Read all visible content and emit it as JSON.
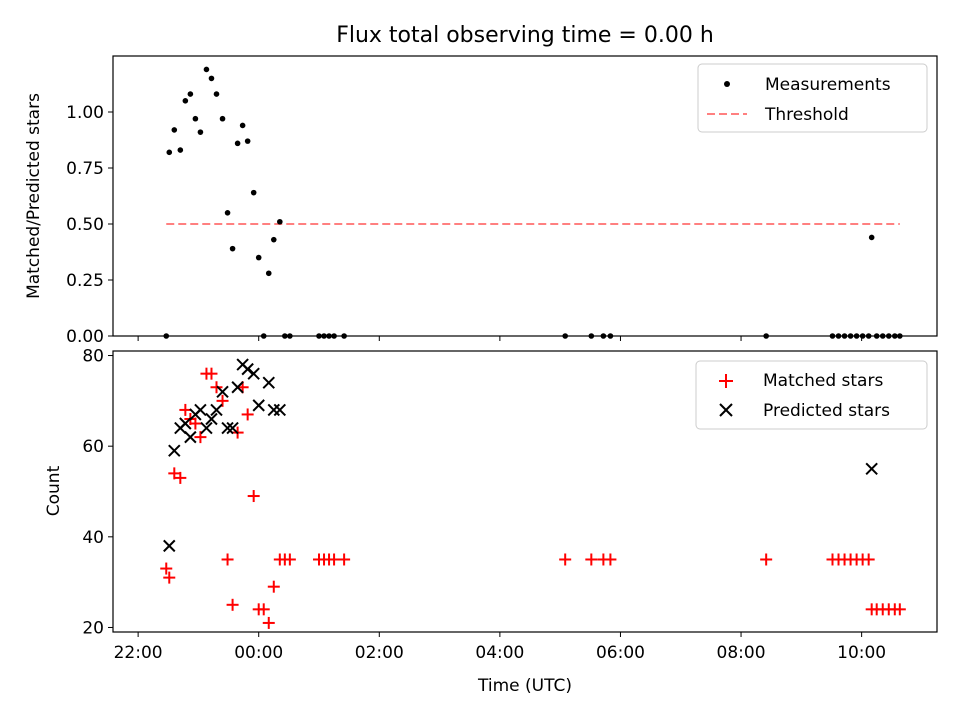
{
  "figure_title": "Flux total observing time = 0.00 h",
  "colors": {
    "matched": "#ff0000",
    "predicted": "#000000",
    "threshold": "#ff8080",
    "measurement": "#000000"
  },
  "chart_data": [
    {
      "type": "scatter",
      "ylabel": "Matched/Predicted stars",
      "xlabel": "",
      "x_unit": "hours since 22:00 UTC shown as clock time",
      "xlim": [
        "21:35",
        "11:15"
      ],
      "ylim": [
        0,
        1.25
      ],
      "yticks": [
        "0.00",
        "0.25",
        "0.50",
        "0.75",
        "1.00"
      ],
      "legend_position": "top-right",
      "threshold": {
        "name": "Threshold",
        "value": 0.5,
        "x_start": "22:28",
        "x_end": "10:38",
        "style": "dashed"
      },
      "series": [
        {
          "name": "Measurements",
          "points": [
            [
              "22:28",
              0.0
            ],
            [
              "22:31",
              0.82
            ],
            [
              "22:36",
              0.92
            ],
            [
              "22:42",
              0.83
            ],
            [
              "22:47",
              1.05
            ],
            [
              "22:52",
              1.08
            ],
            [
              "22:57",
              0.97
            ],
            [
              "23:02",
              0.91
            ],
            [
              "23:08",
              1.19
            ],
            [
              "23:13",
              1.15
            ],
            [
              "23:18",
              1.08
            ],
            [
              "23:24",
              0.97
            ],
            [
              "23:29",
              0.55
            ],
            [
              "23:34",
              0.39
            ],
            [
              "23:39",
              0.86
            ],
            [
              "23:44",
              0.94
            ],
            [
              "23:49",
              0.87
            ],
            [
              "23:55",
              0.64
            ],
            [
              "00:00",
              0.35
            ],
            [
              "00:05",
              0.0
            ],
            [
              "00:10",
              0.28
            ],
            [
              "00:15",
              0.43
            ],
            [
              "00:21",
              0.51
            ],
            [
              "00:26",
              0.0
            ],
            [
              "00:31",
              0.0
            ],
            [
              "01:00",
              0.0
            ],
            [
              "01:05",
              0.0
            ],
            [
              "01:10",
              0.0
            ],
            [
              "01:15",
              0.0
            ],
            [
              "01:25",
              0.0
            ],
            [
              "05:05",
              0.0
            ],
            [
              "05:31",
              0.0
            ],
            [
              "05:43",
              0.0
            ],
            [
              "05:50",
              0.0
            ],
            [
              "08:25",
              0.0
            ],
            [
              "09:31",
              0.0
            ],
            [
              "09:37",
              0.0
            ],
            [
              "09:43",
              0.0
            ],
            [
              "09:49",
              0.0
            ],
            [
              "09:55",
              0.0
            ],
            [
              "10:01",
              0.0
            ],
            [
              "10:07",
              0.0
            ],
            [
              "10:10",
              0.44
            ],
            [
              "10:15",
              0.0
            ],
            [
              "10:21",
              0.0
            ],
            [
              "10:27",
              0.0
            ],
            [
              "10:33",
              0.0
            ],
            [
              "10:38",
              0.0
            ]
          ]
        }
      ]
    },
    {
      "type": "scatter",
      "ylabel": "Count",
      "xlabel": "Time (UTC)",
      "xlim": [
        "21:35",
        "11:15"
      ],
      "ylim": [
        19,
        81
      ],
      "yticks": [
        "20",
        "40",
        "60",
        "80"
      ],
      "xticks": [
        "22:00",
        "00:00",
        "02:00",
        "04:00",
        "06:00",
        "08:00",
        "10:00"
      ],
      "legend_position": "top-right",
      "series": [
        {
          "name": "Matched stars",
          "marker": "plus",
          "points": [
            [
              "22:28",
              33
            ],
            [
              "22:31",
              31
            ],
            [
              "22:36",
              54
            ],
            [
              "22:42",
              53
            ],
            [
              "22:47",
              68
            ],
            [
              "22:52",
              66
            ],
            [
              "22:57",
              65
            ],
            [
              "23:02",
              62
            ],
            [
              "23:08",
              76
            ],
            [
              "23:13",
              76
            ],
            [
              "23:18",
              73
            ],
            [
              "23:24",
              70
            ],
            [
              "23:29",
              35
            ],
            [
              "23:34",
              25
            ],
            [
              "23:39",
              63
            ],
            [
              "23:44",
              73
            ],
            [
              "23:49",
              67
            ],
            [
              "23:55",
              49
            ],
            [
              "00:00",
              24
            ],
            [
              "00:05",
              24
            ],
            [
              "00:10",
              21
            ],
            [
              "00:15",
              29
            ],
            [
              "00:21",
              35
            ],
            [
              "00:26",
              35
            ],
            [
              "00:31",
              35
            ],
            [
              "01:00",
              35
            ],
            [
              "01:05",
              35
            ],
            [
              "01:10",
              35
            ],
            [
              "01:15",
              35
            ],
            [
              "01:25",
              35
            ],
            [
              "05:05",
              35
            ],
            [
              "05:31",
              35
            ],
            [
              "05:43",
              35
            ],
            [
              "05:50",
              35
            ],
            [
              "08:25",
              35
            ],
            [
              "09:31",
              35
            ],
            [
              "09:37",
              35
            ],
            [
              "09:43",
              35
            ],
            [
              "09:49",
              35
            ],
            [
              "09:55",
              35
            ],
            [
              "10:01",
              35
            ],
            [
              "10:07",
              35
            ],
            [
              "10:10",
              24
            ],
            [
              "10:15",
              24
            ],
            [
              "10:21",
              24
            ],
            [
              "10:27",
              24
            ],
            [
              "10:33",
              24
            ],
            [
              "10:38",
              24
            ]
          ]
        },
        {
          "name": "Predicted stars",
          "marker": "x",
          "points": [
            [
              "22:31",
              38
            ],
            [
              "22:36",
              59
            ],
            [
              "22:42",
              64
            ],
            [
              "22:47",
              65
            ],
            [
              "22:52",
              62
            ],
            [
              "22:57",
              67
            ],
            [
              "23:02",
              68
            ],
            [
              "23:08",
              64
            ],
            [
              "23:13",
              66
            ],
            [
              "23:18",
              68
            ],
            [
              "23:24",
              72
            ],
            [
              "23:29",
              64
            ],
            [
              "23:34",
              64
            ],
            [
              "23:39",
              73
            ],
            [
              "23:44",
              78
            ],
            [
              "23:49",
              77
            ],
            [
              "23:55",
              76
            ],
            [
              "00:00",
              69
            ],
            [
              "00:10",
              74
            ],
            [
              "00:15",
              68
            ],
            [
              "00:21",
              68
            ],
            [
              "10:10",
              55
            ]
          ]
        }
      ]
    }
  ]
}
